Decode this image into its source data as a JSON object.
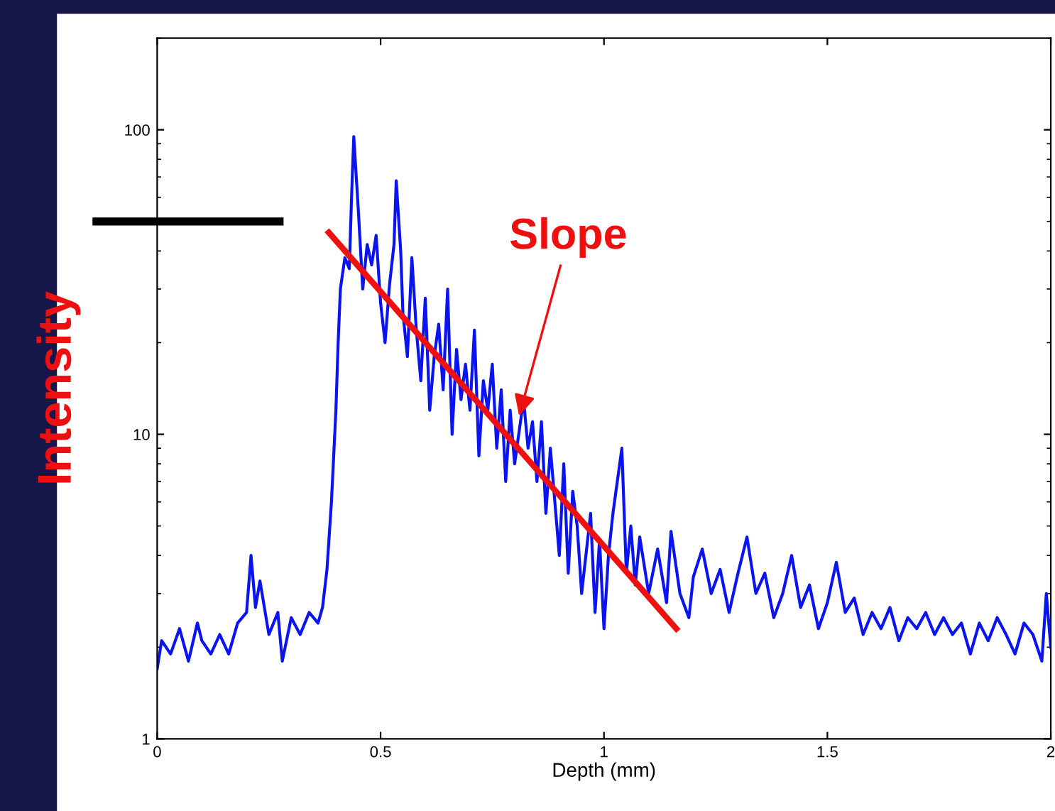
{
  "chart_data": {
    "type": "line",
    "xlabel": "Depth (mm)",
    "ylabel": "Intensity",
    "log": "y",
    "xlim": [
      0,
      2
    ],
    "ylim": [
      1,
      200
    ],
    "xticks": [
      0,
      0.5,
      1,
      1.5,
      2
    ],
    "yticks": [
      1,
      10,
      100
    ],
    "grid": false,
    "legend": false,
    "marker": "none",
    "line_style": "solid",
    "series": [
      {
        "color": "#0a14f0",
        "x": [
          0.0,
          0.01,
          0.03,
          0.05,
          0.07,
          0.09,
          0.1,
          0.12,
          0.14,
          0.16,
          0.18,
          0.2,
          0.21,
          0.22,
          0.23,
          0.25,
          0.27,
          0.28,
          0.3,
          0.32,
          0.34,
          0.36,
          0.37,
          0.38,
          0.39,
          0.4,
          0.405,
          0.41,
          0.42,
          0.43,
          0.435,
          0.44,
          0.45,
          0.46,
          0.47,
          0.48,
          0.49,
          0.5,
          0.51,
          0.52,
          0.53,
          0.535,
          0.545,
          0.55,
          0.56,
          0.57,
          0.58,
          0.59,
          0.6,
          0.61,
          0.62,
          0.63,
          0.64,
          0.65,
          0.66,
          0.67,
          0.68,
          0.69,
          0.7,
          0.71,
          0.72,
          0.73,
          0.74,
          0.75,
          0.76,
          0.77,
          0.78,
          0.79,
          0.8,
          0.82,
          0.83,
          0.84,
          0.85,
          0.86,
          0.87,
          0.88,
          0.9,
          0.91,
          0.92,
          0.93,
          0.94,
          0.95,
          0.97,
          0.98,
          0.99,
          1.0,
          1.01,
          1.02,
          1.04,
          1.05,
          1.06,
          1.07,
          1.08,
          1.1,
          1.12,
          1.14,
          1.15,
          1.17,
          1.19,
          1.2,
          1.22,
          1.24,
          1.26,
          1.28,
          1.3,
          1.32,
          1.34,
          1.36,
          1.38,
          1.4,
          1.42,
          1.44,
          1.46,
          1.48,
          1.5,
          1.52,
          1.54,
          1.56,
          1.58,
          1.6,
          1.62,
          1.64,
          1.66,
          1.68,
          1.7,
          1.72,
          1.74,
          1.76,
          1.78,
          1.8,
          1.82,
          1.84,
          1.86,
          1.88,
          1.9,
          1.92,
          1.94,
          1.96,
          1.98,
          1.99,
          2.0
        ],
        "values": [
          1.7,
          2.1,
          1.9,
          2.3,
          1.8,
          2.4,
          2.1,
          1.9,
          2.2,
          1.9,
          2.4,
          2.6,
          4.0,
          2.7,
          3.3,
          2.2,
          2.6,
          1.8,
          2.5,
          2.2,
          2.6,
          2.4,
          2.7,
          3.6,
          6,
          12,
          20,
          30,
          38,
          35,
          60,
          95,
          55,
          30,
          42,
          36,
          45,
          27,
          20,
          31,
          42,
          68,
          40,
          25,
          18,
          38,
          22,
          15,
          28,
          12,
          18,
          23,
          14,
          30,
          10,
          19,
          13,
          17,
          12,
          22,
          8.5,
          15,
          12,
          17,
          9,
          14,
          7,
          12,
          8,
          13,
          9,
          11,
          7,
          11,
          5.5,
          9,
          4,
          8,
          3.5,
          6.5,
          5,
          3.0,
          5.5,
          2.6,
          4.5,
          2.3,
          4,
          5.5,
          9,
          3.5,
          5,
          3.2,
          4.6,
          3.0,
          4.2,
          2.8,
          4.8,
          3.0,
          2.5,
          3.4,
          4.2,
          3.0,
          3.6,
          2.6,
          3.5,
          4.6,
          3.0,
          3.5,
          2.5,
          3.0,
          4.0,
          2.7,
          3.2,
          2.3,
          2.8,
          3.8,
          2.6,
          2.9,
          2.2,
          2.6,
          2.3,
          2.7,
          2.1,
          2.5,
          2.3,
          2.6,
          2.2,
          2.5,
          2.2,
          2.4,
          1.9,
          2.4,
          2.1,
          2.5,
          2.2,
          1.9,
          2.4,
          2.2,
          1.8,
          3.0,
          2.0
        ]
      },
      {
        "type": "line",
        "color": "#f01010",
        "x": [
          0.384,
          1.162
        ],
        "values": [
          46,
          2.3
        ]
      }
    ],
    "ref_lines": [
      {
        "axis": "y",
        "value": 50,
        "color": "#000000"
      }
    ],
    "annotations": [
      {
        "text": "Slope",
        "x": 0.81,
        "y": 11.5
      }
    ]
  }
}
